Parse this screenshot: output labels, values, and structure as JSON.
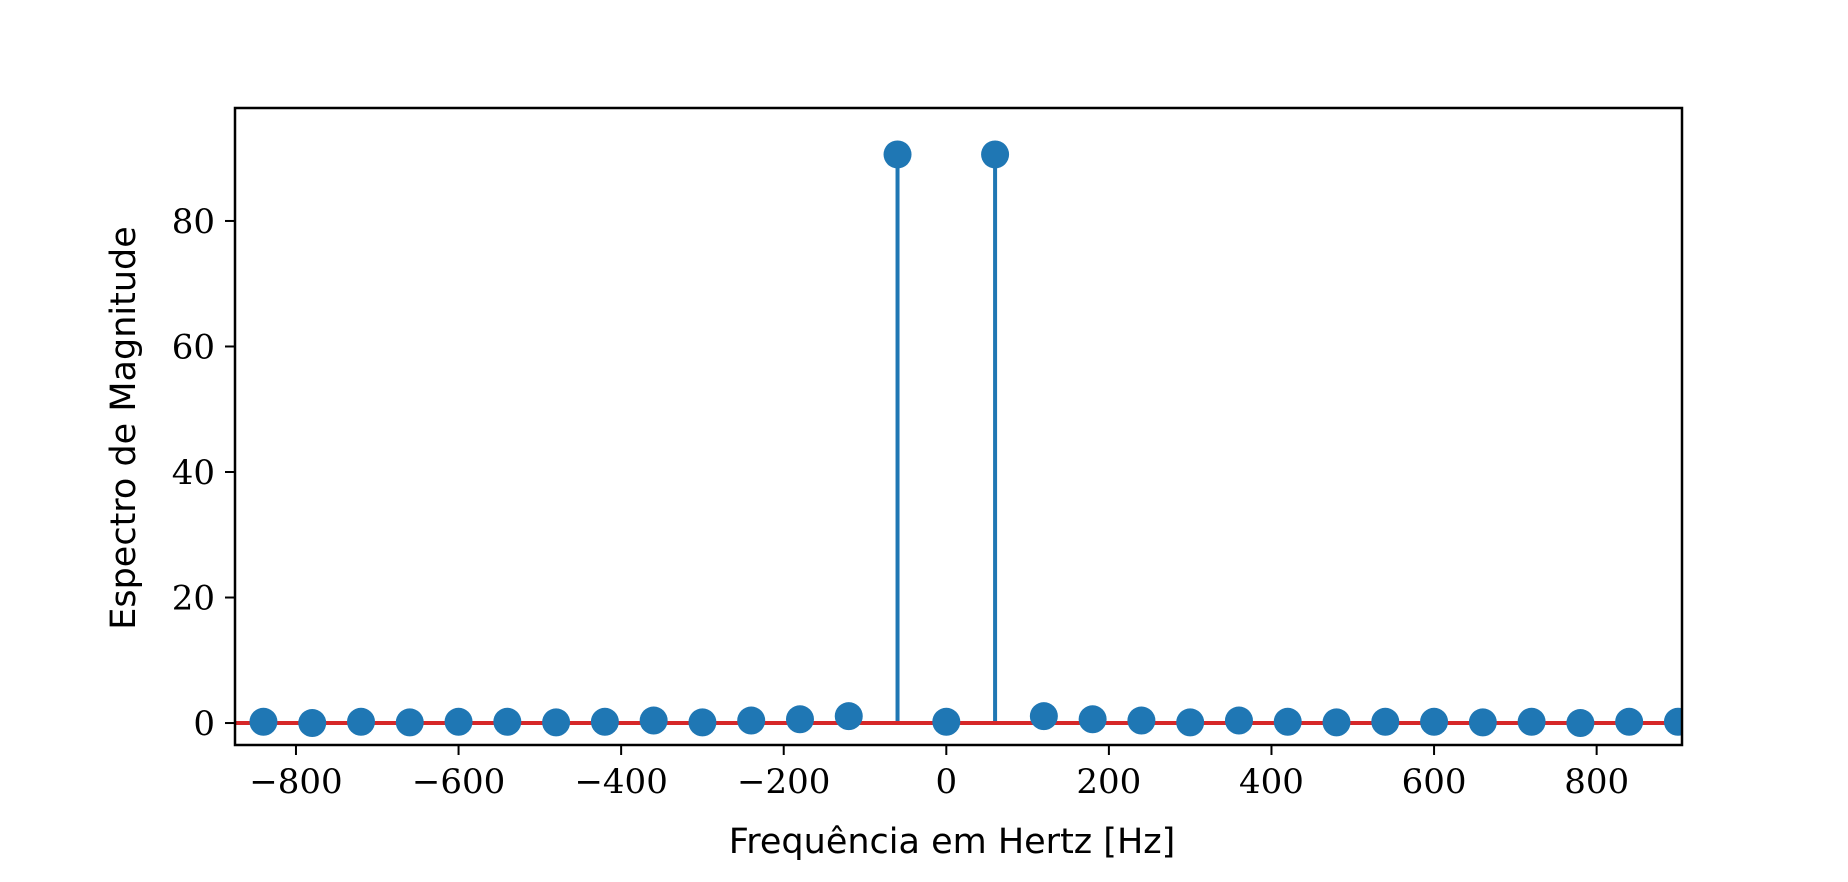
{
  "chart_data": {
    "type": "stem",
    "title": "",
    "xlabel": "Frequência em Hertz [Hz]",
    "ylabel": "Espectro de Magnitude",
    "xlim": [
      -875,
      905
    ],
    "ylim": [
      -3.5,
      98
    ],
    "xticks": [
      -800,
      -600,
      -400,
      -200,
      0,
      200,
      400,
      600,
      800
    ],
    "xtick_labels": [
      "−800",
      "−600",
      "−400",
      "−200",
      "0",
      "200",
      "400",
      "600",
      "800"
    ],
    "yticks": [
      0,
      20,
      40,
      60,
      80
    ],
    "ytick_labels": [
      "0",
      "20",
      "40",
      "60",
      "80"
    ],
    "grid": false,
    "legend": "none",
    "baseline": 0,
    "colors": {
      "stem": "#1f77b4",
      "baseline": "#d62728"
    },
    "x": [
      -840,
      -780,
      -720,
      -660,
      -600,
      -540,
      -480,
      -420,
      -360,
      -300,
      -240,
      -180,
      -120,
      -60,
      0,
      60,
      120,
      180,
      240,
      300,
      360,
      420,
      480,
      540,
      600,
      660,
      720,
      780,
      840,
      900
    ],
    "y": [
      0.2,
      0.0,
      0.2,
      0.1,
      0.2,
      0.2,
      0.1,
      0.2,
      0.4,
      0.1,
      0.4,
      0.6,
      1.1,
      90.6,
      0.2,
      90.6,
      1.1,
      0.6,
      0.4,
      0.1,
      0.4,
      0.2,
      0.1,
      0.2,
      0.2,
      0.1,
      0.2,
      0.0,
      0.2,
      0.2
    ]
  }
}
